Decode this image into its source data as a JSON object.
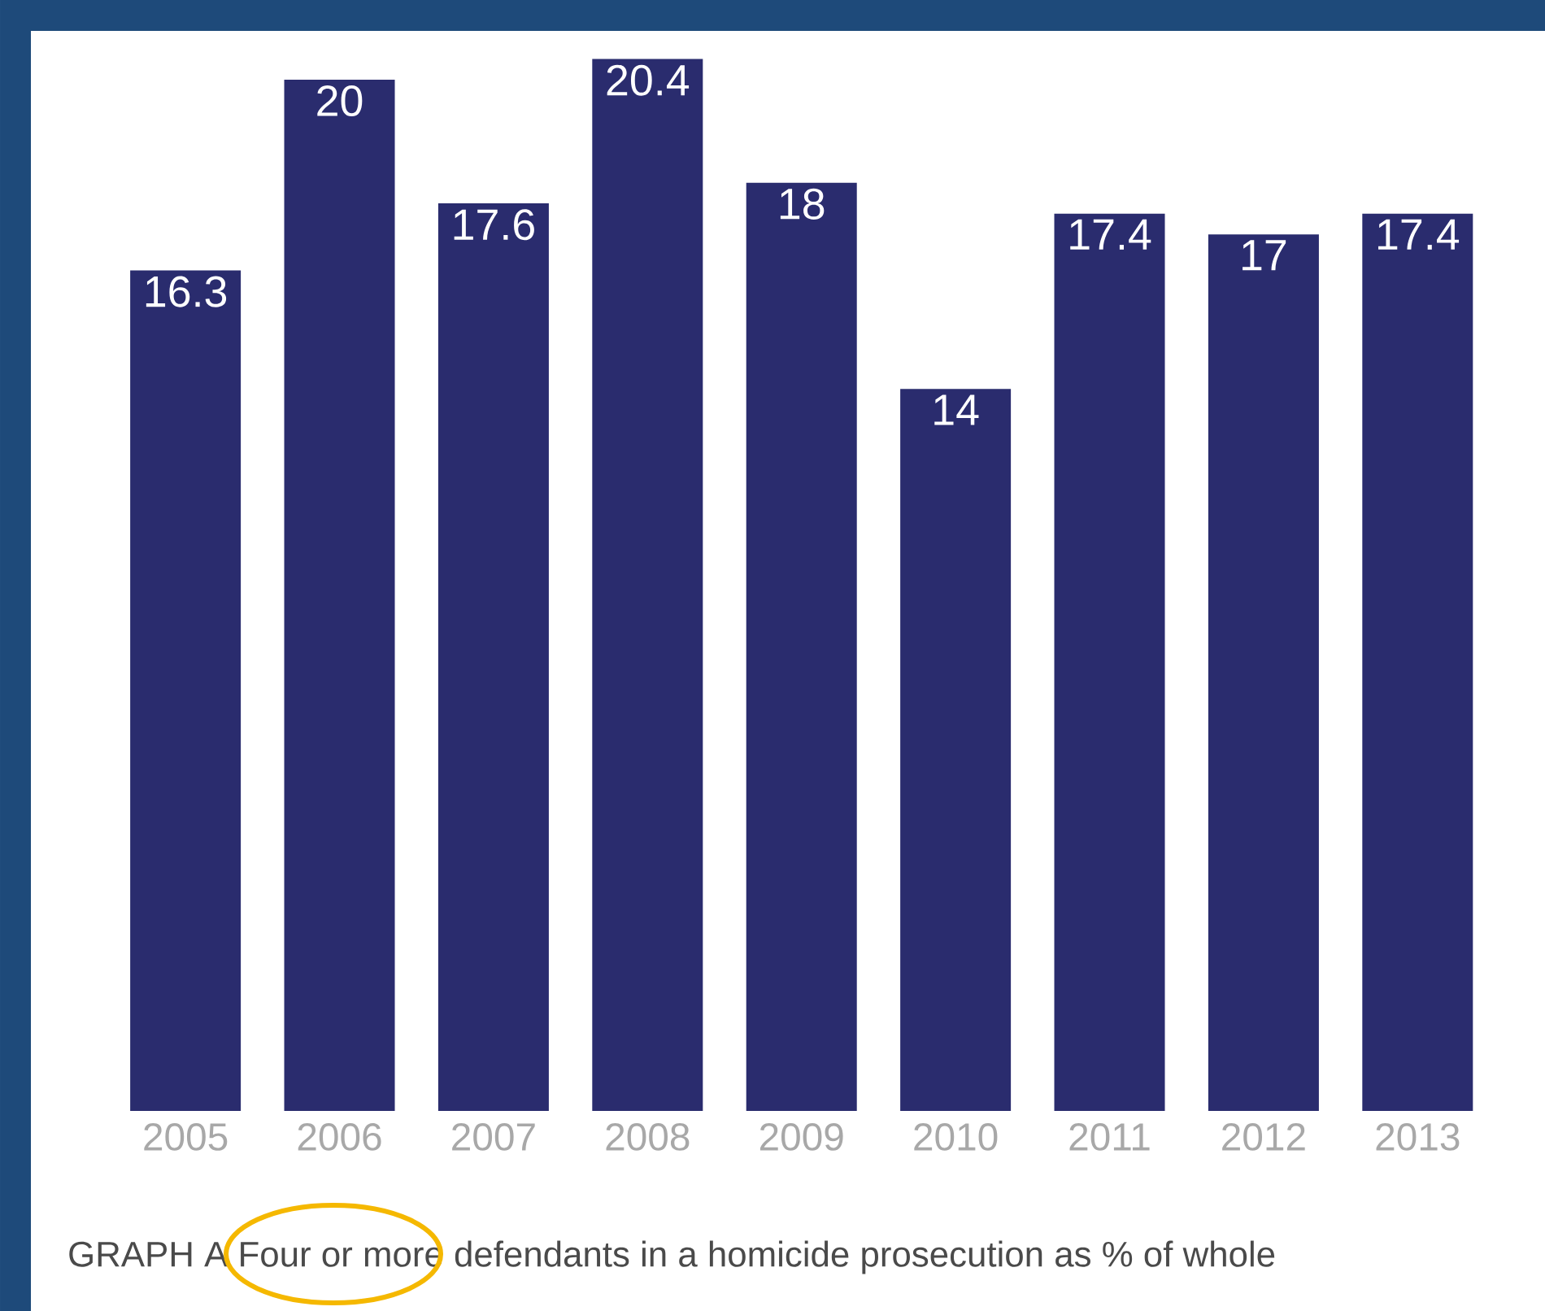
{
  "chart_data": {
    "type": "bar",
    "title": "GRAPH A Four or more defendants in a homicide prosecution as % of whole",
    "categories": [
      "2005",
      "2006",
      "2007",
      "2008",
      "2009",
      "2010",
      "2011",
      "2012",
      "2013"
    ],
    "values": [
      16.3,
      20,
      17.6,
      20.4,
      18,
      14,
      17.4,
      17,
      17.4
    ],
    "color": "#2a2c6e",
    "data_labels": true
  }
}
